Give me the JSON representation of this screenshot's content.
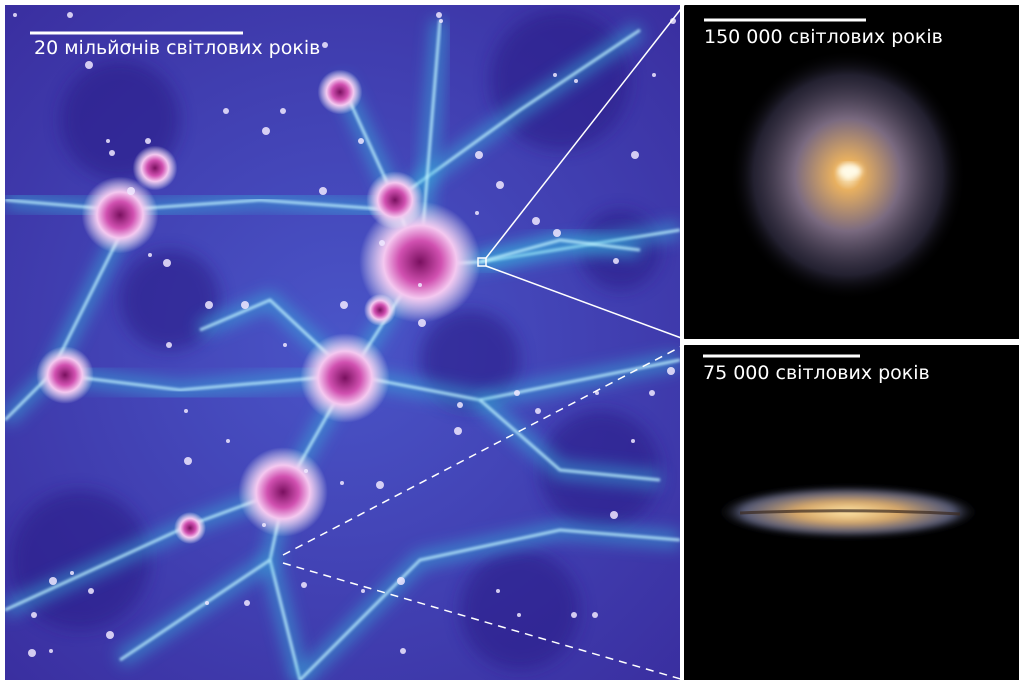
{
  "panels": {
    "cosmic_web": {
      "scale_label": "20 мільйонів світлових років"
    },
    "face_on": {
      "scale_label": "150 000 світлових років"
    },
    "edge_on": {
      "scale_label": "75 000 світлових років"
    }
  }
}
